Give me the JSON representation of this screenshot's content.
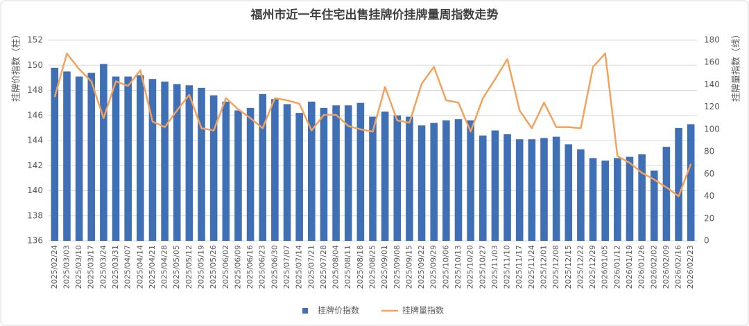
{
  "chart_data": {
    "type": "bar+line",
    "title": "福州市近一年住宅出售挂牌价挂牌量周指数走势",
    "y_label": "挂牌价指数（柱）",
    "y2_label": "挂牌量指数（线）",
    "categories": [
      "2025/02/24",
      "2025/03/03",
      "2025/03/10",
      "2025/03/17",
      "2025/03/24",
      "2025/03/31",
      "2025/04/07",
      "2025/04/14",
      "2025/04/21",
      "2025/04/28",
      "2025/05/05",
      "2025/05/12",
      "2025/05/19",
      "2025/05/26",
      "2025/06/02",
      "2025/06/09",
      "2025/06/16",
      "2025/06/23",
      "2025/06/30",
      "2025/07/07",
      "2025/07/14",
      "2025/07/21",
      "2025/07/28",
      "2025/08/04",
      "2025/08/11",
      "2025/08/18",
      "2025/08/25",
      "2025/09/01",
      "2025/09/08",
      "2025/09/15",
      "2025/09/22",
      "2025/09/29",
      "2025/10/06",
      "2025/10/13",
      "2025/10/20",
      "2025/10/27",
      "2025/11/03",
      "2025/11/10",
      "2025/11/17",
      "2025/11/24",
      "2025/12/01",
      "2025/12/08",
      "2025/12/15",
      "2025/12/22",
      "2025/12/29",
      "2026/01/05",
      "2026/01/12",
      "2026/01/19",
      "2026/01/26",
      "2026/02/02",
      "2026/02/09",
      "2026/02/16",
      "2026/02/23"
    ],
    "series": [
      {
        "name": "挂牌价指数",
        "type": "bar",
        "color": "#3f6fb5",
        "values": [
          149.8,
          149.5,
          149.1,
          149.4,
          150.1,
          149.1,
          149.1,
          149.2,
          148.9,
          148.7,
          148.5,
          148.4,
          148.2,
          147.6,
          147.1,
          146.4,
          146.6,
          147.7,
          147.3,
          146.9,
          146.2,
          147.1,
          146.6,
          146.8,
          146.8,
          147.0,
          145.9,
          146.3,
          146.0,
          145.9,
          145.2,
          145.4,
          145.6,
          145.7,
          145.6,
          144.4,
          144.8,
          144.5,
          144.1,
          144.1,
          144.2,
          144.3,
          143.7,
          143.3,
          142.6,
          142.4,
          142.6,
          142.7,
          142.9,
          141.6,
          143.5,
          145.0,
          145.3
        ]
      },
      {
        "name": "挂牌量指数",
        "type": "line",
        "axis": "y2",
        "color": "#f2a25c",
        "values": [
          129,
          168,
          154,
          143,
          110,
          143,
          139,
          153,
          107,
          102,
          117,
          131,
          101,
          99,
          128,
          118,
          110,
          101,
          128,
          126,
          123,
          99,
          113,
          113,
          103,
          100,
          98,
          138,
          108,
          106,
          141,
          156,
          126,
          124,
          98,
          128,
          145,
          163,
          117,
          101,
          124,
          102,
          102,
          101,
          156,
          168,
          76,
          70,
          61,
          55,
          48,
          40,
          69
        ]
      }
    ],
    "ylim": [
      136,
      152
    ],
    "yticks": [
      136,
      138,
      140,
      142,
      144,
      146,
      148,
      150,
      152
    ],
    "y2lim": [
      0,
      180
    ],
    "y2ticks": [
      0,
      20,
      40,
      60,
      80,
      100,
      120,
      140,
      160,
      180
    ],
    "grid": true,
    "legend": "bottom"
  }
}
